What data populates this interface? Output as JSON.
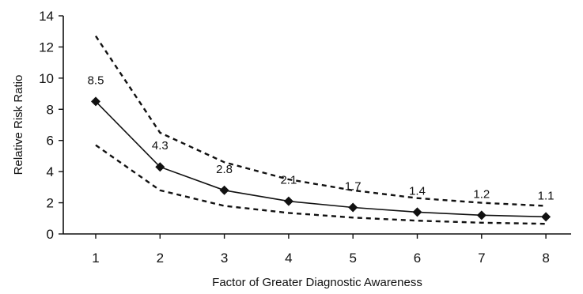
{
  "chart_data": {
    "type": "line",
    "title": "",
    "xlabel": "Factor of Greater Diagnostic Awareness",
    "ylabel": "Relative Risk Ratio",
    "x": [
      1,
      2,
      3,
      4,
      5,
      6,
      7,
      8
    ],
    "x_tick_labels": [
      "1",
      "2",
      "3",
      "4",
      "5",
      "6",
      "7",
      "8"
    ],
    "y_tick_labels": [
      "0",
      "2",
      "4",
      "6",
      "8",
      "10",
      "12",
      "14"
    ],
    "ylim": [
      0,
      14
    ],
    "grid": false,
    "legend": "none",
    "series": [
      {
        "values": [
          8.5,
          4.3,
          2.8,
          2.1,
          1.7,
          1.4,
          1.2,
          1.1
        ],
        "data_labels": [
          "8.5",
          "4.3",
          "2.8",
          "2.1",
          "1.7",
          "1.4",
          "1.2",
          "1.1"
        ],
        "style": "solid",
        "marker": "diamond"
      },
      {
        "values": [
          12.7,
          6.5,
          4.6,
          3.5,
          2.8,
          2.3,
          2.0,
          1.8
        ],
        "style": "dashed"
      },
      {
        "values": [
          5.7,
          2.8,
          1.8,
          1.35,
          1.05,
          0.85,
          0.72,
          0.65
        ],
        "style": "dashed"
      }
    ]
  }
}
